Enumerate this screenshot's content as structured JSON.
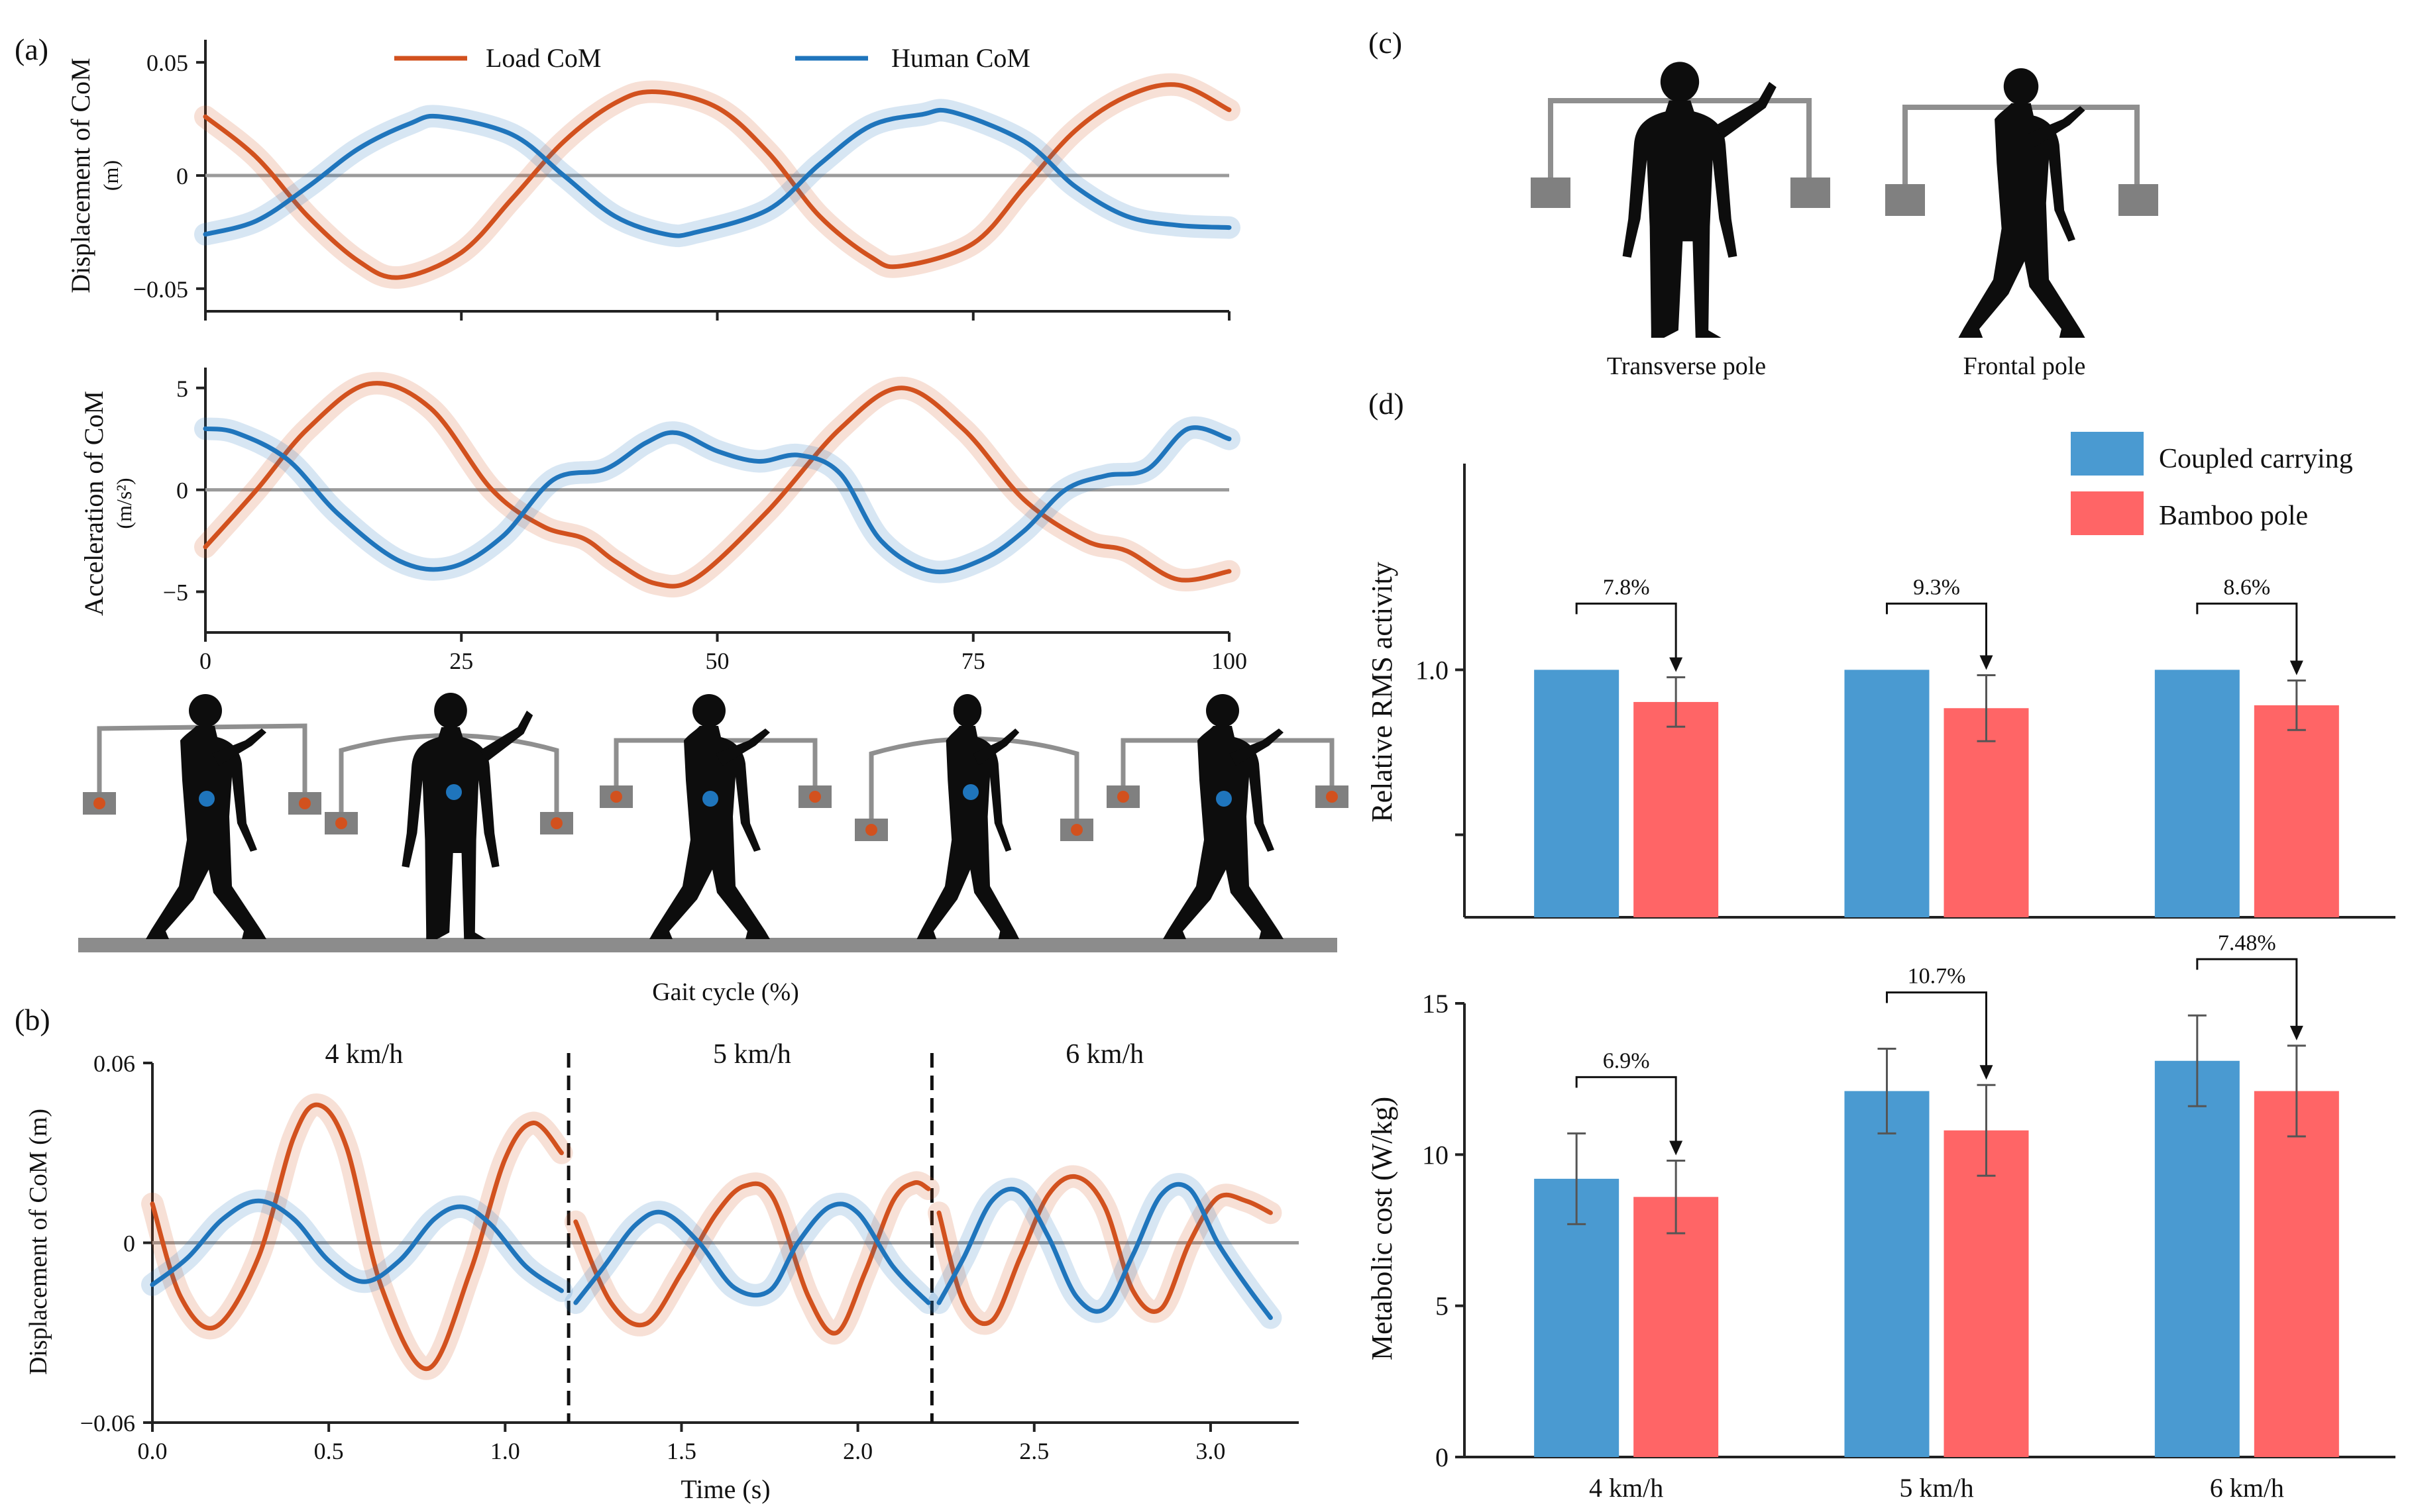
{
  "colors": {
    "load": "#D2511E",
    "human": "#1F75BC",
    "zero": "#9A9A9A",
    "pole": "#8F8F8F",
    "weight": "#808080",
    "silhouette": "#0d0d0d",
    "ground": "#8C8C8C",
    "bar_blue": "#4A9AD1",
    "bar_red": "#FF6566"
  },
  "panel_labels": {
    "a": "(a)",
    "b": "(b)",
    "c": "(c)",
    "d": "(d)"
  },
  "legend_a": {
    "load": "Load CoM",
    "human": "Human CoM"
  },
  "chart_data": [
    {
      "id": "a-displacement",
      "type": "line",
      "ylabel_main": "Displacement of CoM",
      "ylabel_unit": "(m)",
      "xlim": [
        0,
        100
      ],
      "ylim": [
        -0.06,
        0.06
      ],
      "yticks": [
        {
          "v": 0.05,
          "label": "0.05"
        },
        {
          "v": 0,
          "label": "0"
        },
        {
          "v": -0.05,
          "label": "−0.05"
        }
      ],
      "series": [
        {
          "name": "Load CoM",
          "x": [
            0,
            5,
            10,
            15,
            19,
            25,
            30,
            35,
            40,
            44,
            50,
            55,
            60,
            65,
            68,
            75,
            80,
            85,
            90,
            95,
            100
          ],
          "y": [
            0.026,
            0.008,
            -0.018,
            -0.038,
            -0.045,
            -0.034,
            -0.01,
            0.015,
            0.032,
            0.037,
            0.03,
            0.01,
            -0.018,
            -0.036,
            -0.04,
            -0.03,
            -0.005,
            0.02,
            0.035,
            0.04,
            0.029
          ]
        },
        {
          "name": "Human CoM",
          "x": [
            0,
            5,
            10,
            15,
            20,
            23,
            30,
            35,
            40,
            45,
            48,
            55,
            60,
            65,
            70,
            73,
            80,
            85,
            90,
            95,
            100
          ],
          "y": [
            -0.026,
            -0.02,
            -0.005,
            0.012,
            0.023,
            0.026,
            0.018,
            0.0,
            -0.018,
            -0.026,
            -0.025,
            -0.015,
            0.005,
            0.022,
            0.027,
            0.028,
            0.015,
            -0.005,
            -0.018,
            -0.022,
            -0.023
          ]
        }
      ]
    },
    {
      "id": "a-acceleration",
      "type": "line",
      "ylabel_main": "Acceleration of CoM",
      "ylabel_unit": "(m/s²)",
      "xlabel": "Gait cycle (%)",
      "xlim": [
        0,
        100
      ],
      "ylim": [
        -7,
        6
      ],
      "xticks": [
        {
          "v": 0,
          "label": "0"
        },
        {
          "v": 25,
          "label": "25"
        },
        {
          "v": 50,
          "label": "50"
        },
        {
          "v": 75,
          "label": "75"
        },
        {
          "v": 100,
          "label": "100"
        }
      ],
      "yticks": [
        {
          "v": 5,
          "label": "5"
        },
        {
          "v": 0,
          "label": "0"
        },
        {
          "v": -5,
          "label": "−5"
        }
      ],
      "series": [
        {
          "name": "Load CoM",
          "x": [
            0,
            5,
            10,
            16,
            22,
            28,
            33,
            37,
            40,
            44,
            48,
            55,
            62,
            68,
            74,
            80,
            86,
            90,
            95,
            100
          ],
          "y": [
            -2.8,
            0.0,
            3.0,
            5.2,
            4.0,
            0.0,
            -1.8,
            -2.4,
            -3.5,
            -4.6,
            -4.3,
            -1.0,
            3.0,
            5.0,
            3.0,
            -0.5,
            -2.5,
            -3.0,
            -4.4,
            -4.0
          ]
        },
        {
          "name": "Human CoM",
          "x": [
            0,
            3,
            8,
            13,
            19,
            24,
            29,
            34,
            39,
            43,
            46,
            50,
            54,
            58,
            62,
            66,
            71,
            76,
            80,
            84,
            88,
            92,
            96,
            100
          ],
          "y": [
            3.0,
            2.8,
            1.5,
            -1.2,
            -3.5,
            -3.8,
            -2.3,
            0.5,
            1.0,
            2.3,
            2.8,
            1.9,
            1.4,
            1.7,
            0.8,
            -2.5,
            -4.0,
            -3.4,
            -2.0,
            0.0,
            0.7,
            1.0,
            3.0,
            2.5
          ]
        }
      ]
    },
    {
      "id": "b",
      "type": "line",
      "ylabel": "Displacement of CoM (m)",
      "xlabel": "Time (s)",
      "xlim": [
        0,
        3.25
      ],
      "ylim": [
        -0.06,
        0.06
      ],
      "xticks": [
        {
          "v": 0,
          "label": "0.0"
        },
        {
          "v": 0.5,
          "label": "0.5"
        },
        {
          "v": 1.0,
          "label": "1.0"
        },
        {
          "v": 1.5,
          "label": "1.5"
        },
        {
          "v": 2.0,
          "label": "2.0"
        },
        {
          "v": 2.5,
          "label": "2.5"
        },
        {
          "v": 3.0,
          "label": "3.0"
        }
      ],
      "yticks": [
        {
          "v": 0.06,
          "label": "0.06"
        },
        {
          "v": 0,
          "label": "0"
        },
        {
          "v": -0.06,
          "label": "−0.06"
        }
      ],
      "segments": [
        {
          "label": "4 km/h",
          "label_x": 0.6,
          "load": {
            "x": [
              0.0,
              0.08,
              0.18,
              0.3,
              0.4,
              0.47,
              0.55,
              0.65,
              0.78,
              0.9,
              1.0,
              1.08,
              1.16
            ],
            "y": [
              0.013,
              -0.018,
              -0.028,
              -0.005,
              0.035,
              0.046,
              0.032,
              -0.015,
              -0.042,
              -0.01,
              0.028,
              0.04,
              0.03
            ]
          },
          "human": {
            "x": [
              0.0,
              0.1,
              0.2,
              0.3,
              0.4,
              0.5,
              0.6,
              0.7,
              0.8,
              0.88,
              0.96,
              1.06,
              1.16
            ],
            "y": [
              -0.014,
              -0.005,
              0.008,
              0.014,
              0.008,
              -0.006,
              -0.013,
              -0.006,
              0.008,
              0.012,
              0.006,
              -0.008,
              -0.016
            ]
          }
        },
        {
          "label": "5 km/h",
          "label_x": 1.7,
          "load": {
            "x": [
              1.2,
              1.3,
              1.4,
              1.5,
              1.6,
              1.68,
              1.76,
              1.86,
              1.94,
              2.02,
              2.1,
              2.16,
              2.2
            ],
            "y": [
              0.007,
              -0.02,
              -0.027,
              -0.01,
              0.01,
              0.019,
              0.015,
              -0.018,
              -0.03,
              -0.01,
              0.014,
              0.02,
              0.018
            ]
          },
          "human": {
            "x": [
              1.2,
              1.28,
              1.37,
              1.45,
              1.55,
              1.65,
              1.75,
              1.83,
              1.92,
              2.0,
              2.1,
              2.2
            ],
            "y": [
              -0.02,
              -0.008,
              0.006,
              0.01,
              0.0,
              -0.015,
              -0.016,
              0.0,
              0.012,
              0.01,
              -0.008,
              -0.02
            ]
          }
        },
        {
          "label": "6 km/h",
          "label_x": 2.7,
          "load": {
            "x": [
              2.23,
              2.3,
              2.38,
              2.46,
              2.54,
              2.62,
              2.7,
              2.78,
              2.86,
              2.94,
              3.02,
              3.1,
              3.17
            ],
            "y": [
              0.01,
              -0.02,
              -0.026,
              -0.005,
              0.016,
              0.022,
              0.012,
              -0.016,
              -0.022,
              0.0,
              0.015,
              0.014,
              0.01
            ]
          },
          "human": {
            "x": [
              2.23,
              2.3,
              2.38,
              2.46,
              2.54,
              2.62,
              2.7,
              2.78,
              2.86,
              2.94,
              3.02,
              3.1,
              3.17
            ],
            "y": [
              -0.02,
              -0.005,
              0.014,
              0.017,
              0.002,
              -0.018,
              -0.022,
              -0.004,
              0.016,
              0.018,
              0.0,
              -0.014,
              -0.025
            ]
          }
        }
      ],
      "dividers": [
        1.18,
        2.21
      ]
    },
    {
      "id": "d-rms",
      "type": "bar",
      "ylabel": "Relative RMS activity",
      "ylim": [
        0.4,
        1.5
      ],
      "yticks": [
        {
          "v": 1.0,
          "label": "1.0"
        },
        {
          "v": 0.6,
          "label": ""
        }
      ],
      "categories": [
        "4 km/h",
        "5 km/h",
        "6 km/h"
      ],
      "series": [
        {
          "name": "Coupled carrying",
          "values": [
            1.0,
            1.0,
            1.0
          ]
        },
        {
          "name": "Bamboo pole",
          "values": [
            0.922,
            0.907,
            0.914
          ],
          "err": [
            0.06,
            0.08,
            0.06
          ]
        }
      ],
      "annotations": [
        "7.8%",
        "9.3%",
        "8.6%"
      ]
    },
    {
      "id": "d-metabolic",
      "type": "bar",
      "ylabel": "Metabolic cost (W/kg)",
      "ylim": [
        0,
        15
      ],
      "yticks": [
        {
          "v": 0,
          "label": "0"
        },
        {
          "v": 5,
          "label": "5"
        },
        {
          "v": 10,
          "label": "10"
        },
        {
          "v": 15,
          "label": "15"
        }
      ],
      "categories": [
        "4 km/h",
        "5 km/h",
        "6 km/h"
      ],
      "series": [
        {
          "name": "Coupled carrying",
          "values": [
            9.2,
            12.1,
            13.1
          ],
          "err": [
            1.5,
            1.4,
            1.5
          ]
        },
        {
          "name": "Bamboo pole",
          "values": [
            8.6,
            10.8,
            12.1
          ],
          "err": [
            1.2,
            1.5,
            1.5
          ]
        }
      ],
      "annotations": [
        "6.9%",
        "10.7%",
        "7.48%"
      ]
    }
  ],
  "legend_d": {
    "coupled": "Coupled carrying",
    "bamboo": "Bamboo pole"
  },
  "illustration_c": {
    "transverse": "Transverse pole",
    "frontal": "Frontal pole"
  }
}
